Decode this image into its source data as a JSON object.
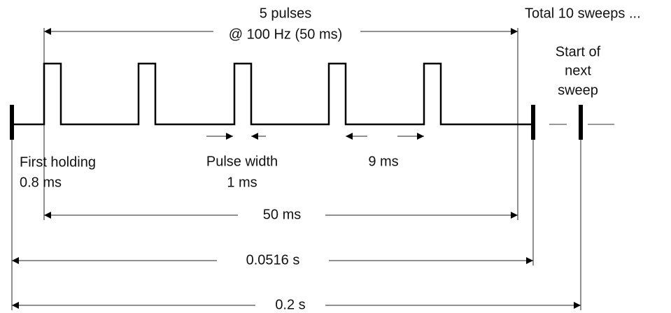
{
  "header": {
    "pulses": "5 pulses",
    "rate": "@ 100 Hz (50 ms)",
    "total": "Total 10 sweeps ..."
  },
  "next_sweep": [
    "Start of",
    "next",
    "sweep"
  ],
  "labels": {
    "first_holding": "First holding",
    "first_holding_value": "0.8 ms",
    "pulse_width": "Pulse width",
    "pulse_width_value": "1 ms",
    "interval": "9 ms"
  },
  "spans": {
    "train": "50 ms",
    "sweep": "0.0516 s",
    "period": "0.2 s"
  }
}
